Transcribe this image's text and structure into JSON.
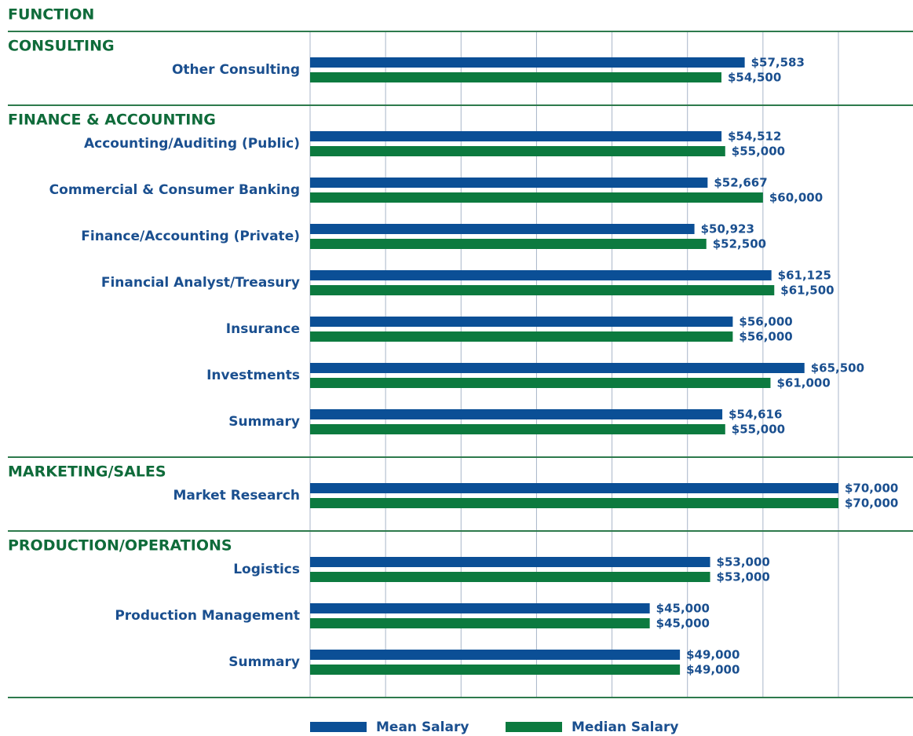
{
  "chart_data": {
    "type": "bar",
    "orientation": "horizontal",
    "header": "FUNCTION",
    "groups": [
      {
        "name": "CONSULTING",
        "categories": [
          "Other Consulting"
        ]
      },
      {
        "name": "FINANCE & ACCOUNTING",
        "categories": [
          "Accounting/Auditing (Public)",
          "Commercial & Consumer Banking",
          "Finance/Accounting (Private)",
          "Financial Analyst/Treasury",
          "Insurance",
          "Investments",
          "Summary"
        ]
      },
      {
        "name": "MARKETING/SALES",
        "categories": [
          "Market Research"
        ]
      },
      {
        "name": "PRODUCTION/OPERATIONS",
        "categories": [
          "Logistics",
          "Production Management",
          "Summary"
        ]
      }
    ],
    "bold": [
      7,
      11
    ],
    "series": [
      {
        "name": "Mean Salary",
        "color": "#0b4f96",
        "values": [
          57583,
          54512,
          52667,
          50923,
          61125,
          56000,
          65500,
          54616,
          70000,
          53000,
          45000,
          49000
        ],
        "value_labels": [
          "$57,583",
          "$54,512",
          "$52,667",
          "$50,923",
          "$61,125",
          "$56,000",
          "$65,500",
          "$54,616",
          "$70,000",
          "$53,000",
          "$45,000",
          "$49,000"
        ]
      },
      {
        "name": "Median Salary",
        "color": "#0c7a3f",
        "values": [
          54500,
          55000,
          60000,
          52500,
          61500,
          56000,
          61000,
          55000,
          70000,
          53000,
          45000,
          49000
        ],
        "value_labels": [
          "$54,500",
          "$55,000",
          "$60,000",
          "$52,500",
          "$61,500",
          "$56,000",
          "$61,000",
          "$55,000",
          "$70,000",
          "$53,000",
          "$45,000",
          "$49,000"
        ]
      }
    ],
    "xlim": [
      0,
      70000
    ],
    "xticks": [
      0,
      10000,
      20000,
      30000,
      40000,
      50000,
      60000,
      70000
    ],
    "grid": true
  }
}
